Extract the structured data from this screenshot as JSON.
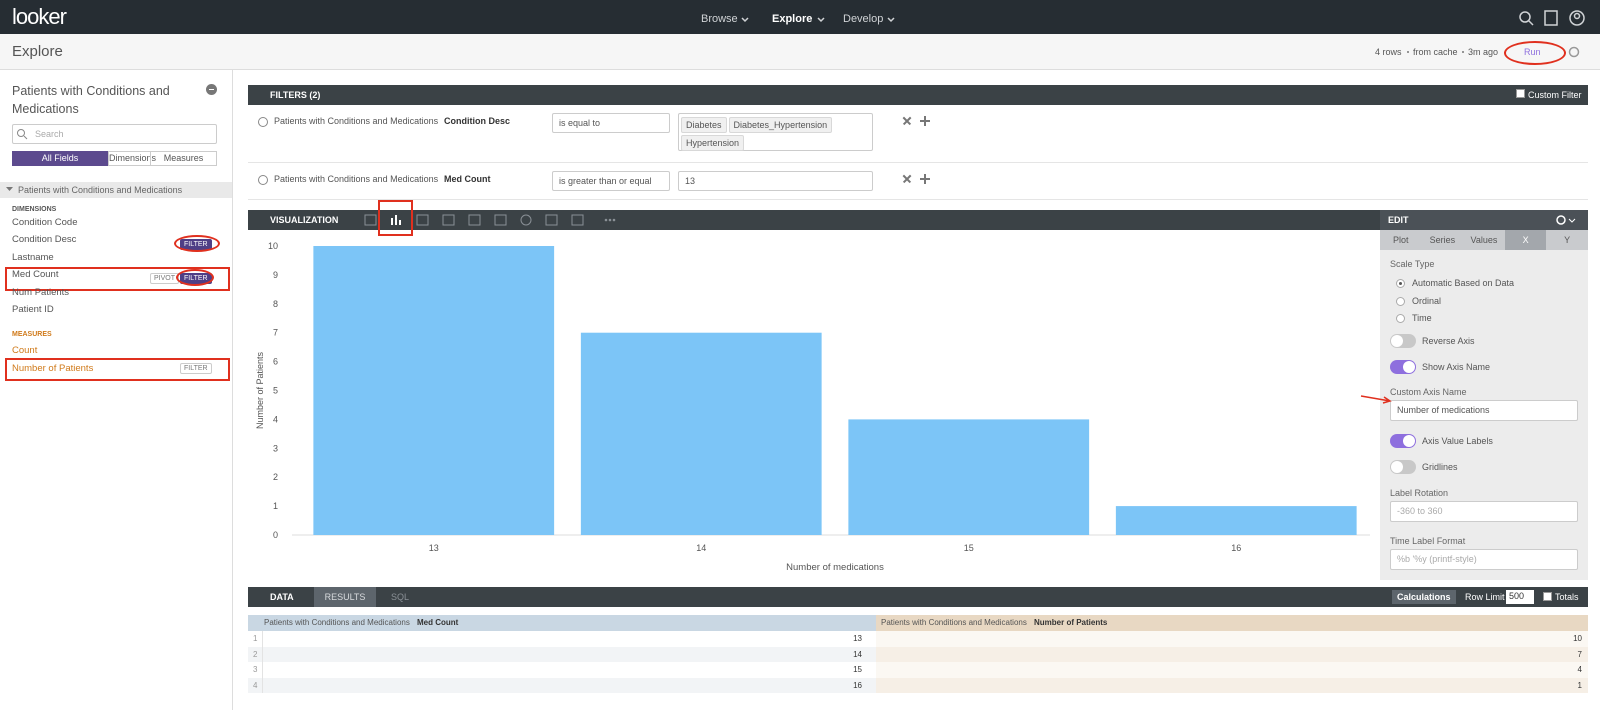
{
  "nav": {
    "logo": "looker",
    "menu": [
      "Browse",
      "Explore",
      "Develop"
    ]
  },
  "header": {
    "title": "Explore",
    "status": [
      "4 rows",
      "from cache",
      "3m ago"
    ],
    "run": "Run"
  },
  "sidebar": {
    "explore": "Patients with Conditions and Medications",
    "search": "Search",
    "tabs": [
      "All Fields",
      "Dimensions",
      "Measures"
    ],
    "view": "Patients with Conditions and Medications",
    "dimensions_heading": "DIMENSIONS",
    "dimensions": [
      "Condition Code",
      "Condition Desc",
      "Lastname",
      "Med Count",
      "Num Patients",
      "Patient ID"
    ],
    "measures_heading": "MEASURES",
    "measures": [
      "Count",
      "Number of Patients"
    ],
    "filter": "FILTER",
    "pivot": "PIVOT"
  },
  "filters": {
    "title": "FILTERS (2)",
    "custom": "Custom Filter",
    "items": [
      {
        "view": "Patients with Conditions and Medications",
        "field": "Condition Desc",
        "operator": "is equal to",
        "values": [
          "Diabetes",
          "Diabetes_Hypertension",
          "Hypertension"
        ]
      },
      {
        "view": "Patients with Conditions and Medications",
        "field": "Med Count",
        "operator": "is greater than or equal",
        "values": [
          "13"
        ]
      }
    ]
  },
  "visualization": {
    "title": "VISUALIZATION"
  },
  "chart_data": {
    "type": "bar",
    "categories": [
      "13",
      "14",
      "15",
      "16"
    ],
    "values": [
      10,
      7,
      4,
      1
    ],
    "color": "#7cc5f7",
    "ylim": [
      0,
      10
    ],
    "yticks": [
      0,
      1,
      2,
      3,
      4,
      5,
      6,
      7,
      8,
      9,
      10
    ],
    "y_label": "Number of Patients",
    "x_label": "Number of medications"
  },
  "edit": {
    "title": "EDIT",
    "tabs": [
      "Plot",
      "Series",
      "Values",
      "X",
      "Y"
    ],
    "active_tab": 3,
    "scale_type": "Scale Type",
    "scale_options": [
      "Automatic Based on Data",
      "Ordinal",
      "Time"
    ],
    "scale_selected": 0,
    "toggles": [
      {
        "label": "Reverse Axis",
        "on": false
      },
      {
        "label": "Show Axis Name",
        "on": true
      }
    ],
    "custom_axis_name": "Custom Axis Name",
    "axis_name_value": "Number of medications",
    "toggles2": [
      {
        "label": "Axis Value Labels",
        "on": true
      },
      {
        "label": "Gridlines",
        "on": false
      }
    ],
    "label_rotation": "Label Rotation",
    "rotation_placeholder": "-360 to 360",
    "time_label_format": "Time Label Format",
    "time_placeholder": "%b '%y (printf-style)"
  },
  "data": {
    "title": "DATA",
    "tabs": [
      "RESULTS",
      "SQL"
    ],
    "calculations": "Calculations",
    "row_limit": "Row Limit",
    "row_limit_value": 500,
    "totals": "Totals",
    "columns": [
      {
        "view": "Patients with Conditions and Medications",
        "field": "Med Count"
      },
      {
        "view": "Patients with Conditions and Medications",
        "field": "Number of Patients"
      }
    ],
    "rows": [
      [
        1,
        13,
        10
      ],
      [
        2,
        14,
        7
      ],
      [
        3,
        15,
        4
      ],
      [
        4,
        16,
        1
      ]
    ]
  }
}
